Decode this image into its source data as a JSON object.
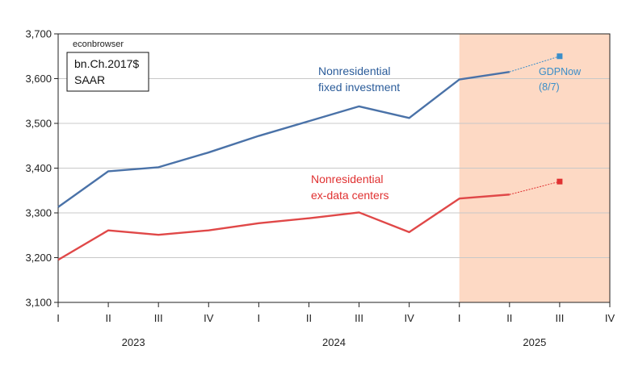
{
  "chart_data": {
    "type": "line",
    "watermark": "econbrowser",
    "units_box": [
      "bn.Ch.2017$",
      "SAAR"
    ],
    "x": [
      "2023Q1",
      "2023Q2",
      "2023Q3",
      "2023Q4",
      "2024Q1",
      "2024Q2",
      "2024Q3",
      "2024Q4",
      "2025Q1",
      "2025Q2",
      "2025Q3",
      "2025Q4"
    ],
    "x_tick_labels": [
      "I",
      "II",
      "III",
      "IV",
      "I",
      "II",
      "III",
      "IV",
      "I",
      "II",
      "III",
      "IV"
    ],
    "year_labels": [
      {
        "label": "2023",
        "quarter_index": 1.5
      },
      {
        "label": "2024",
        "quarter_index": 5.5
      },
      {
        "label": "2025",
        "quarter_index": 9.5
      }
    ],
    "ylim": [
      3100,
      3700
    ],
    "y_ticks": [
      3100,
      3200,
      3300,
      3400,
      3500,
      3600,
      3700
    ],
    "y_tick_labels": [
      "3,100",
      "3,200",
      "3,300",
      "3,400",
      "3,500",
      "3,600",
      "3,700"
    ],
    "grid": true,
    "shaded_region": {
      "from_index": 8,
      "to_index": 11,
      "color": "#fdd9c4"
    },
    "series": [
      {
        "annotation_lines": [
          "Nonresidential",
          "fixed investment"
        ],
        "color": "#4a72a8",
        "values": [
          3313,
          3393,
          3402,
          3435,
          3472,
          3505,
          3538,
          3512,
          3598,
          3615,
          null,
          null
        ],
        "nowcast": {
          "from_index": 9,
          "to_index": 10,
          "value": 3650,
          "color": "#3a8ec9"
        }
      },
      {
        "annotation_lines": [
          "Nonresidential",
          "ex-data centers"
        ],
        "color": "#e04848",
        "values": [
          3195,
          3261,
          3251,
          3261,
          3277,
          3288,
          3301,
          3257,
          3332,
          3341,
          null,
          null
        ],
        "nowcast": {
          "from_index": 9,
          "to_index": 10,
          "value": 3370,
          "color": "#e03131"
        }
      }
    ],
    "nowcast_label_lines": [
      "GDPNow",
      "(8/7)"
    ],
    "colors": {
      "axis": "#222222",
      "grid": "#c8c8c8",
      "shade": "#fdd9c4"
    }
  }
}
